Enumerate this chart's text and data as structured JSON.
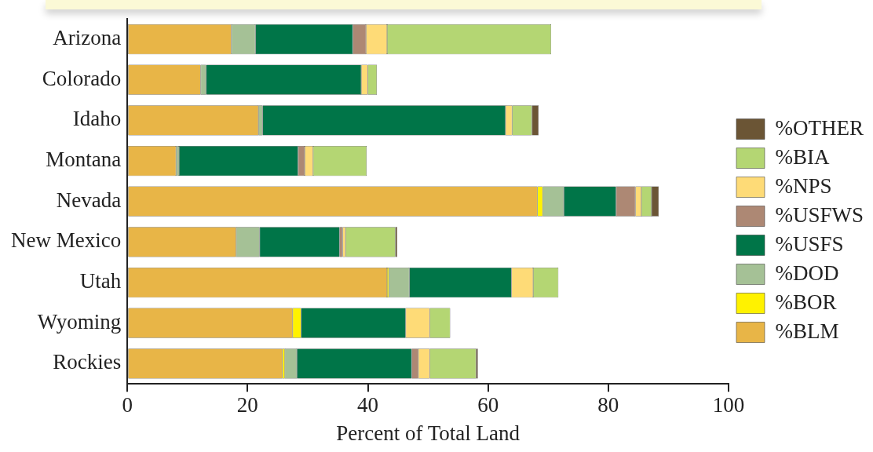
{
  "chart_data": {
    "type": "bar",
    "orientation": "horizontal",
    "stacked": true,
    "xlabel": "Percent of Total Land",
    "categories": [
      "Arizona",
      "Colorado",
      "Idaho",
      "Montana",
      "Nevada",
      "New Mexico",
      "Utah",
      "Wyoming",
      "Rockies"
    ],
    "xlim": [
      0,
      100
    ],
    "xticks": [
      0,
      20,
      40,
      60,
      80,
      100
    ],
    "grid": false,
    "legend": "right",
    "series": [
      {
        "name": "%BLM",
        "color": "#e8b547",
        "values": [
          17.3,
          12.2,
          21.8,
          8.1,
          68.2,
          18.1,
          43.2,
          27.5,
          25.8
        ]
      },
      {
        "name": "%BOR",
        "color": "#fff200",
        "values": [
          0,
          0,
          0,
          0,
          0.9,
          0,
          0.3,
          1.4,
          0.4
        ]
      },
      {
        "name": "%DOD",
        "color": "#a5c196",
        "values": [
          4.0,
          0.9,
          0.7,
          0.5,
          3.5,
          3.9,
          3.4,
          0,
          2.0
        ]
      },
      {
        "name": "%USFS",
        "color": "#007548",
        "values": [
          16.2,
          25.8,
          40.4,
          19.8,
          8.7,
          13.3,
          17.0,
          17.4,
          19.1
        ]
      },
      {
        "name": "%USFWS",
        "color": "#ad8874",
        "values": [
          2.2,
          0,
          0,
          1.1,
          3.2,
          0.5,
          0,
          0,
          1.1
        ]
      },
      {
        "name": "%NPS",
        "color": "#fedb77",
        "values": [
          3.5,
          1.1,
          1.1,
          1.4,
          1.0,
          0.5,
          3.6,
          4.0,
          1.9
        ]
      },
      {
        "name": "%BIA",
        "color": "#b4d673",
        "values": [
          27.3,
          1.5,
          3.3,
          8.9,
          1.7,
          8.3,
          4.2,
          3.4,
          7.7
        ]
      },
      {
        "name": "%OTHER",
        "color": "#6b5535",
        "values": [
          0,
          0,
          1.1,
          0,
          1.2,
          0.3,
          0,
          0,
          0.3
        ]
      }
    ]
  }
}
